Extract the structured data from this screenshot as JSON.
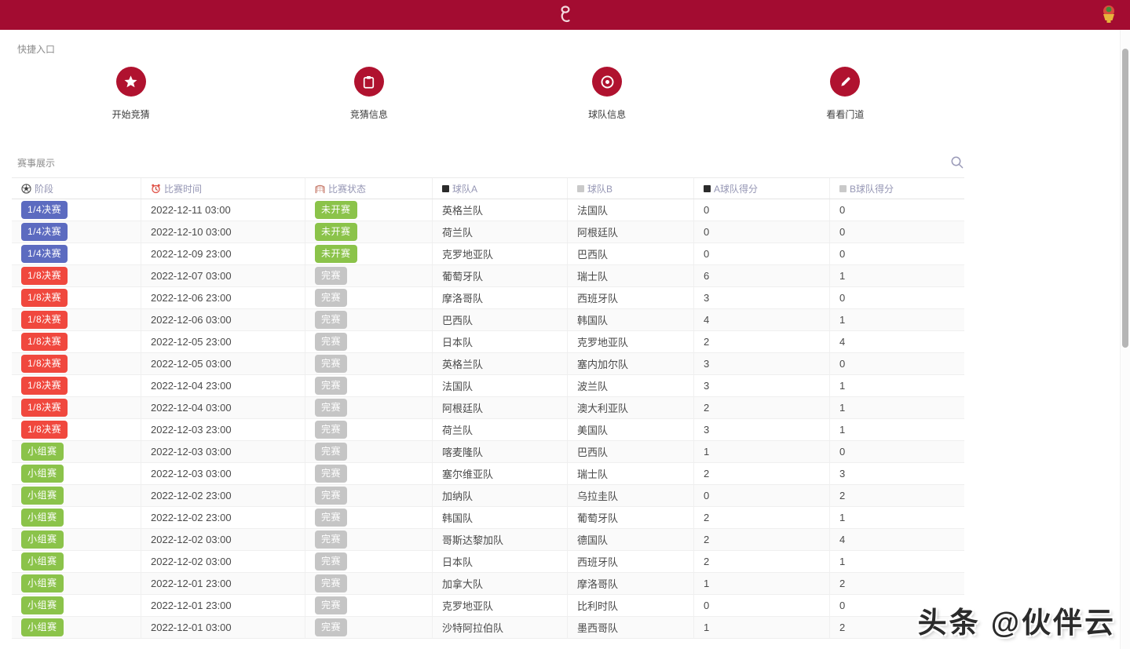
{
  "appbar": {
    "logo_icon": "worldcup-qatar-logo",
    "avatar_icon": "trophy-avatar"
  },
  "quick_entry": {
    "title": "快捷入口",
    "items": [
      {
        "label": "开始竞猜",
        "icon": "star-icon"
      },
      {
        "label": "竞猜信息",
        "icon": "clipboard-icon"
      },
      {
        "label": "球队信息",
        "icon": "target-icon"
      },
      {
        "label": "看看门道",
        "icon": "pencil-icon"
      }
    ]
  },
  "events": {
    "title": "赛事展示",
    "search_icon": "search-icon",
    "columns": [
      {
        "label": "阶段",
        "icon": "soccer-ball-icon"
      },
      {
        "label": "比赛时间",
        "icon": "alarm-clock-icon"
      },
      {
        "label": "比赛状态",
        "icon": "goal-net-icon"
      },
      {
        "label": "球队A",
        "icon": "black-square-icon"
      },
      {
        "label": "球队B",
        "icon": "gray-square-icon"
      },
      {
        "label": "A球队得分",
        "icon": "black-square-icon"
      },
      {
        "label": "B球队得分",
        "icon": "gray-square-icon"
      }
    ],
    "rows": [
      {
        "stage": "1/4决赛",
        "stage_type": "quarter",
        "time": "2022-12-11 03:00",
        "status": "未开赛",
        "status_type": "notstarted",
        "teamA": "英格兰队",
        "teamB": "法国队",
        "scoreA": "0",
        "scoreB": "0"
      },
      {
        "stage": "1/4决赛",
        "stage_type": "quarter",
        "time": "2022-12-10 03:00",
        "status": "未开赛",
        "status_type": "notstarted",
        "teamA": "荷兰队",
        "teamB": "阿根廷队",
        "scoreA": "0",
        "scoreB": "0"
      },
      {
        "stage": "1/4决赛",
        "stage_type": "quarter",
        "time": "2022-12-09 23:00",
        "status": "未开赛",
        "status_type": "notstarted",
        "teamA": "克罗地亚队",
        "teamB": "巴西队",
        "scoreA": "0",
        "scoreB": "0"
      },
      {
        "stage": "1/8决赛",
        "stage_type": "eighth",
        "time": "2022-12-07 03:00",
        "status": "完赛",
        "status_type": "finished",
        "teamA": "葡萄牙队",
        "teamB": "瑞士队",
        "scoreA": "6",
        "scoreB": "1"
      },
      {
        "stage": "1/8决赛",
        "stage_type": "eighth",
        "time": "2022-12-06 23:00",
        "status": "完赛",
        "status_type": "finished",
        "teamA": "摩洛哥队",
        "teamB": "西班牙队",
        "scoreA": "3",
        "scoreB": "0"
      },
      {
        "stage": "1/8决赛",
        "stage_type": "eighth",
        "time": "2022-12-06 03:00",
        "status": "完赛",
        "status_type": "finished",
        "teamA": "巴西队",
        "teamB": "韩国队",
        "scoreA": "4",
        "scoreB": "1"
      },
      {
        "stage": "1/8决赛",
        "stage_type": "eighth",
        "time": "2022-12-05 23:00",
        "status": "完赛",
        "status_type": "finished",
        "teamA": "日本队",
        "teamB": "克罗地亚队",
        "scoreA": "2",
        "scoreB": "4"
      },
      {
        "stage": "1/8决赛",
        "stage_type": "eighth",
        "time": "2022-12-05 03:00",
        "status": "完赛",
        "status_type": "finished",
        "teamA": "英格兰队",
        "teamB": "塞内加尔队",
        "scoreA": "3",
        "scoreB": "0"
      },
      {
        "stage": "1/8决赛",
        "stage_type": "eighth",
        "time": "2022-12-04 23:00",
        "status": "完赛",
        "status_type": "finished",
        "teamA": "法国队",
        "teamB": "波兰队",
        "scoreA": "3",
        "scoreB": "1"
      },
      {
        "stage": "1/8决赛",
        "stage_type": "eighth",
        "time": "2022-12-04 03:00",
        "status": "完赛",
        "status_type": "finished",
        "teamA": "阿根廷队",
        "teamB": "澳大利亚队",
        "scoreA": "2",
        "scoreB": "1"
      },
      {
        "stage": "1/8决赛",
        "stage_type": "eighth",
        "time": "2022-12-03 23:00",
        "status": "完赛",
        "status_type": "finished",
        "teamA": "荷兰队",
        "teamB": "美国队",
        "scoreA": "3",
        "scoreB": "1"
      },
      {
        "stage": "小组赛",
        "stage_type": "group",
        "time": "2022-12-03 03:00",
        "status": "完赛",
        "status_type": "finished",
        "teamA": "喀麦隆队",
        "teamB": "巴西队",
        "scoreA": "1",
        "scoreB": "0"
      },
      {
        "stage": "小组赛",
        "stage_type": "group",
        "time": "2022-12-03 03:00",
        "status": "完赛",
        "status_type": "finished",
        "teamA": "塞尔维亚队",
        "teamB": "瑞士队",
        "scoreA": "2",
        "scoreB": "3"
      },
      {
        "stage": "小组赛",
        "stage_type": "group",
        "time": "2022-12-02 23:00",
        "status": "完赛",
        "status_type": "finished",
        "teamA": "加纳队",
        "teamB": "乌拉圭队",
        "scoreA": "0",
        "scoreB": "2"
      },
      {
        "stage": "小组赛",
        "stage_type": "group",
        "time": "2022-12-02 23:00",
        "status": "完赛",
        "status_type": "finished",
        "teamA": "韩国队",
        "teamB": "葡萄牙队",
        "scoreA": "2",
        "scoreB": "1"
      },
      {
        "stage": "小组赛",
        "stage_type": "group",
        "time": "2022-12-02 03:00",
        "status": "完赛",
        "status_type": "finished",
        "teamA": "哥斯达黎加队",
        "teamB": "德国队",
        "scoreA": "2",
        "scoreB": "4"
      },
      {
        "stage": "小组赛",
        "stage_type": "group",
        "time": "2022-12-02 03:00",
        "status": "完赛",
        "status_type": "finished",
        "teamA": "日本队",
        "teamB": "西班牙队",
        "scoreA": "2",
        "scoreB": "1"
      },
      {
        "stage": "小组赛",
        "stage_type": "group",
        "time": "2022-12-01 23:00",
        "status": "完赛",
        "status_type": "finished",
        "teamA": "加拿大队",
        "teamB": "摩洛哥队",
        "scoreA": "1",
        "scoreB": "2"
      },
      {
        "stage": "小组赛",
        "stage_type": "group",
        "time": "2022-12-01 23:00",
        "status": "完赛",
        "status_type": "finished",
        "teamA": "克罗地亚队",
        "teamB": "比利时队",
        "scoreA": "0",
        "scoreB": "0"
      },
      {
        "stage": "小组赛",
        "stage_type": "group",
        "time": "2022-12-01 03:00",
        "status": "完赛",
        "status_type": "finished",
        "teamA": "沙特阿拉伯队",
        "teamB": "墨西哥队",
        "scoreA": "1",
        "scoreB": "2"
      }
    ]
  },
  "watermark": "头条 @伙伴云",
  "colors": {
    "appbar": "#a30c31",
    "quick_circle": "#b0122f",
    "badge_quarter": "#5c6bc0",
    "badge_eighth": "#f0483e",
    "badge_group": "#8bc34a",
    "badge_notstarted": "#8bc34a",
    "badge_finished": "#c5c5c5",
    "header_text": "#9596b4",
    "cell_text": "#4a4a4a"
  }
}
